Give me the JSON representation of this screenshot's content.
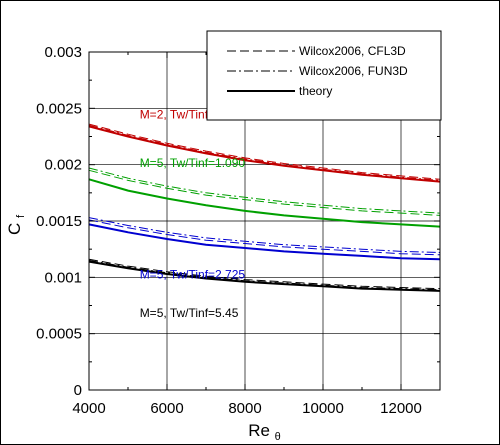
{
  "chart_data": {
    "type": "line",
    "title": "",
    "xlabel": "Re",
    "xlabel_sub": "θ",
    "ylabel": "C",
    "ylabel_sub": "f",
    "xlim": [
      4000,
      13000
    ],
    "ylim": [
      0,
      0.003
    ],
    "x_ticks": [
      {
        "value": 4000,
        "label": "4000"
      },
      {
        "value": 6000,
        "label": "6000"
      },
      {
        "value": 8000,
        "label": "8000"
      },
      {
        "value": 10000,
        "label": "10000"
      },
      {
        "value": 12000,
        "label": "12000"
      }
    ],
    "y_ticks": [
      {
        "value": 0,
        "label": "0"
      },
      {
        "value": 0.0005,
        "label": "0.0005"
      },
      {
        "value": 0.001,
        "label": "0.001"
      },
      {
        "value": 0.0015,
        "label": "0.0015"
      },
      {
        "value": 0.002,
        "label": "0.002"
      },
      {
        "value": 0.0025,
        "label": "0.0025"
      },
      {
        "value": 0.003,
        "label": "0.003"
      }
    ],
    "grid": true,
    "x": [
      4000,
      5000,
      6000,
      7000,
      8000,
      9000,
      10000,
      11000,
      12000,
      13000
    ],
    "legend": {
      "placement": "top-right",
      "entries": [
        {
          "label": "Wilcox2006, CFL3D",
          "style": "dashed"
        },
        {
          "label": "Wilcox2006, FUN3D",
          "style": "dashdot"
        },
        {
          "label": "theory",
          "style": "solid"
        }
      ]
    },
    "cases": [
      {
        "label": "M=2, Tw/Tinf=1.712",
        "color": "#c00000",
        "label_anchor": {
          "x": 5300,
          "y": 0.00241
        },
        "series": [
          {
            "name": "Wilcox2006, CFL3D",
            "style": "dashed",
            "values": [
              0.00236,
              0.00227,
              0.00219,
              0.00212,
              0.00206,
              0.00201,
              0.00197,
              0.00193,
              0.0019,
              0.00187
            ]
          },
          {
            "name": "Wilcox2006, FUN3D",
            "style": "dashdot",
            "values": [
              0.00235,
              0.00226,
              0.00218,
              0.00211,
              0.00205,
              0.002,
              0.00196,
              0.00192,
              0.00189,
              0.00186
            ]
          },
          {
            "name": "theory",
            "style": "solid",
            "values": [
              0.00234,
              0.00225,
              0.00217,
              0.0021,
              0.00204,
              0.00199,
              0.00195,
              0.00191,
              0.00188,
              0.00185
            ]
          }
        ]
      },
      {
        "label": "M=5, Tw/Tinf=1.090",
        "color": "#00a000",
        "label_anchor": {
          "x": 5300,
          "y": 0.00198
        },
        "series": [
          {
            "name": "Wilcox2006, CFL3D",
            "style": "dashed",
            "values": [
              0.00195,
              0.00186,
              0.00179,
              0.00173,
              0.00169,
              0.00165,
              0.00162,
              0.00159,
              0.00157,
              0.00155
            ]
          },
          {
            "name": "Wilcox2006, FUN3D",
            "style": "dashdot",
            "values": [
              0.00197,
              0.00188,
              0.00181,
              0.00175,
              0.00171,
              0.00167,
              0.00164,
              0.00161,
              0.00159,
              0.00157
            ]
          },
          {
            "name": "theory",
            "style": "solid",
            "values": [
              0.00187,
              0.00177,
              0.0017,
              0.00164,
              0.00159,
              0.00155,
              0.00152,
              0.00149,
              0.00147,
              0.00145
            ]
          }
        ]
      },
      {
        "label": "M=5, Tw/Tinf=2.725",
        "color": "#0000d0",
        "label_anchor": {
          "x": 5300,
          "y": 0.00099
        },
        "series": [
          {
            "name": "Wilcox2006, CFL3D",
            "style": "dashed",
            "values": [
              0.00151,
              0.00144,
              0.00138,
              0.00133,
              0.0013,
              0.00127,
              0.00125,
              0.00123,
              0.00121,
              0.0012
            ]
          },
          {
            "name": "Wilcox2006, FUN3D",
            "style": "dashdot",
            "values": [
              0.00153,
              0.00146,
              0.0014,
              0.00135,
              0.00132,
              0.00129,
              0.00127,
              0.00125,
              0.00123,
              0.00122
            ]
          },
          {
            "name": "theory",
            "style": "solid",
            "values": [
              0.00147,
              0.0014,
              0.00134,
              0.00129,
              0.00126,
              0.00123,
              0.00121,
              0.00119,
              0.00117,
              0.00116
            ]
          }
        ]
      },
      {
        "label": "M=5, Tw/Tinf=5.45",
        "color": "#000000",
        "label_anchor": {
          "x": 5300,
          "y": 0.00065
        },
        "series": [
          {
            "name": "Wilcox2006, CFL3D",
            "style": "dashed",
            "values": [
              0.00116,
              0.0011,
              0.00105,
              0.00101,
              0.00098,
              0.00096,
              0.00094,
              0.00092,
              0.00091,
              0.0009
            ]
          },
          {
            "name": "Wilcox2006, FUN3D",
            "style": "dashdot",
            "values": [
              0.00115,
              0.00109,
              0.00104,
              0.001,
              0.00097,
              0.00095,
              0.00093,
              0.00091,
              0.0009,
              0.00089
            ]
          },
          {
            "name": "theory",
            "style": "solid",
            "values": [
              0.00114,
              0.00108,
              0.00103,
              0.00099,
              0.00096,
              0.00094,
              0.00092,
              0.0009,
              0.00089,
              0.00088
            ]
          }
        ]
      }
    ]
  }
}
